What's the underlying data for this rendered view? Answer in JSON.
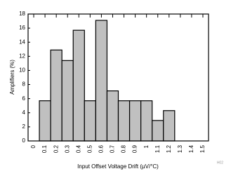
{
  "chart_data": {
    "type": "bar",
    "x_label": "Input Offset Voltage Drift (µV/°C)",
    "y_label": "Amplifiers (%)",
    "note": "H02",
    "categories": [
      "0",
      "0.1",
      "0.2",
      "0.3",
      "0.4",
      "0.5",
      "0.6",
      "0.7",
      "0.8",
      "0.9",
      "1",
      "1.1",
      "1.2",
      "1.3",
      "1.4",
      "1.5"
    ],
    "values": [
      0,
      5.7,
      12.9,
      11.4,
      15.7,
      5.7,
      17.1,
      7.1,
      5.7,
      5.7,
      5.7,
      2.9,
      4.3,
      0,
      0,
      0
    ],
    "color": "#c0c0c0",
    "ylim": [
      0,
      18
    ],
    "yticks": [
      0,
      2,
      4,
      6,
      8,
      10,
      12,
      14,
      16,
      18
    ],
    "grid": false
  }
}
